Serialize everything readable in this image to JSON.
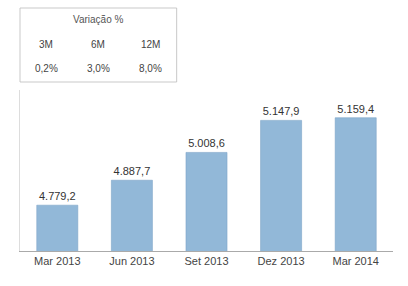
{
  "chart_data": {
    "type": "bar",
    "categories": [
      "Mar 2013",
      "Jun 2013",
      "Set 2013",
      "Dez 2013",
      "Mar 2014"
    ],
    "values": [
      4779.2,
      4887.7,
      5008.6,
      5147.9,
      5159.4
    ],
    "value_labels": [
      "4.779,2",
      "4.887,7",
      "5.008,6",
      "5.147,9",
      "5.159,4"
    ],
    "data_labels": true,
    "color": "#92b8d8",
    "ylim": [
      4580,
      5280
    ],
    "tick_labels": "x",
    "grid": false,
    "annotations": [
      [
        "Variação %"
      ],
      [
        "3M",
        "6M",
        "12M"
      ],
      [
        "0,2%",
        "3,0%",
        "8,0%"
      ]
    ]
  }
}
